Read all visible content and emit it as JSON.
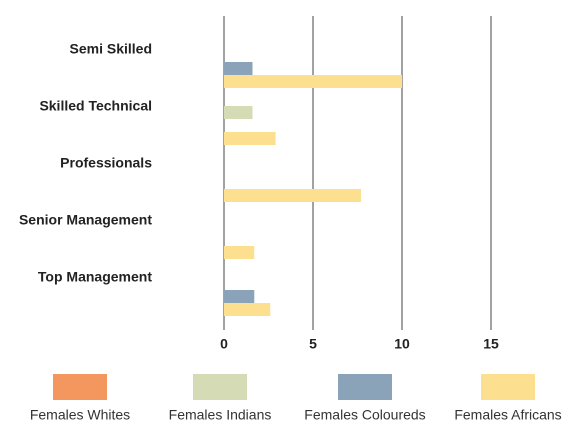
{
  "chart_data": {
    "type": "bar",
    "orientation": "horizontal",
    "categories": [
      "Semi Skilled",
      "Skilled Technical",
      "Professionals",
      "Senior Management",
      "Top Management"
    ],
    "series": [
      {
        "name": "Females Whites",
        "color": "#f4975f",
        "values": [
          0,
          0,
          0,
          0,
          0
        ]
      },
      {
        "name": "Females Indians",
        "color": "#d5dbb5",
        "values": [
          0,
          1.6,
          0,
          0,
          0
        ]
      },
      {
        "name": "Females Coloureds",
        "color": "#8aa3b8",
        "values": [
          1.6,
          0,
          0,
          0,
          1.7
        ]
      },
      {
        "name": "Females Africans",
        "color": "#fce08f",
        "values": [
          10,
          2.9,
          7.7,
          1.7,
          2.6
        ]
      }
    ],
    "xlim": [
      0,
      15
    ],
    "xticks": [
      0,
      5,
      10,
      15
    ],
    "grid": true,
    "legend": "bottom"
  }
}
